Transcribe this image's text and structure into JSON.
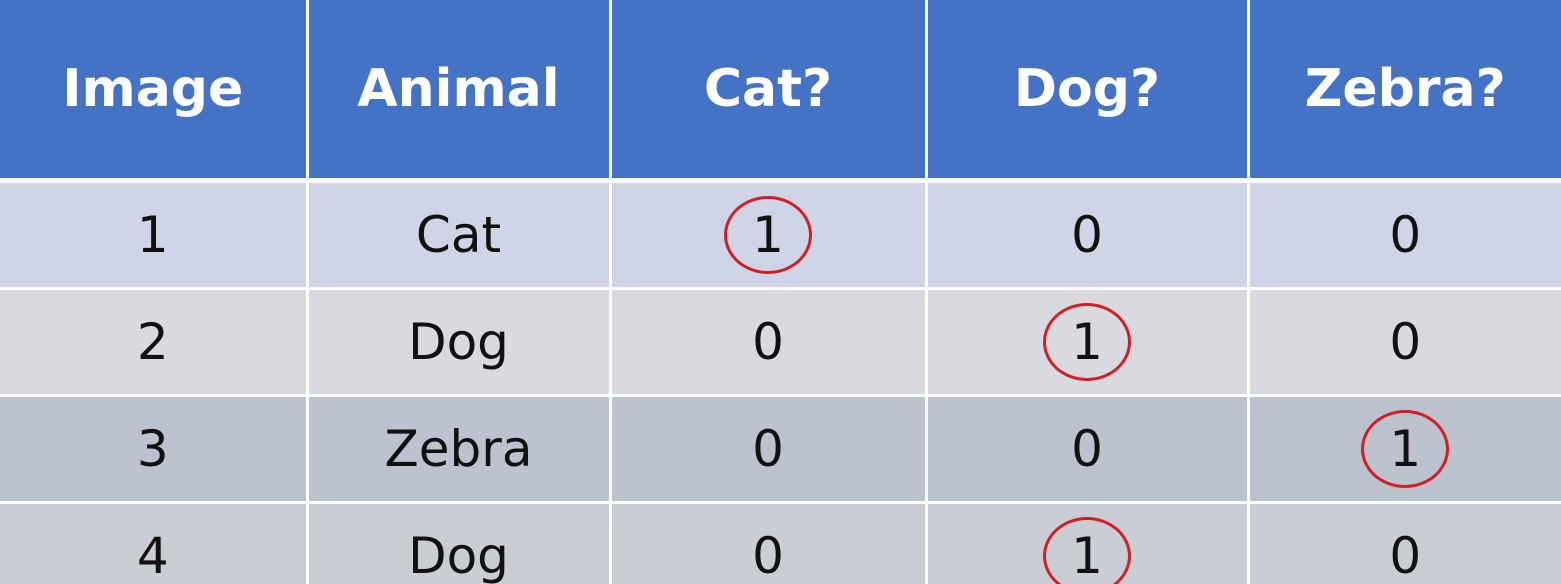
{
  "table": {
    "headers": [
      "Image",
      "Animal",
      "Cat?",
      "Dog?",
      "Zebra?"
    ],
    "rows": [
      [
        "1",
        "Cat",
        "1",
        "0",
        "0"
      ],
      [
        "2",
        "Dog",
        "0",
        "1",
        "0"
      ],
      [
        "3",
        "Zebra",
        "0",
        "0",
        "1"
      ],
      [
        "4",
        "Dog",
        "0",
        "1",
        "0"
      ]
    ],
    "circled_cells": [
      [
        0,
        2
      ],
      [
        1,
        3
      ],
      [
        2,
        4
      ],
      [
        3,
        3
      ]
    ],
    "colors": {
      "header_bg": "#4472c4",
      "header_text": "#ffffff",
      "circle": "#d11f26"
    }
  }
}
